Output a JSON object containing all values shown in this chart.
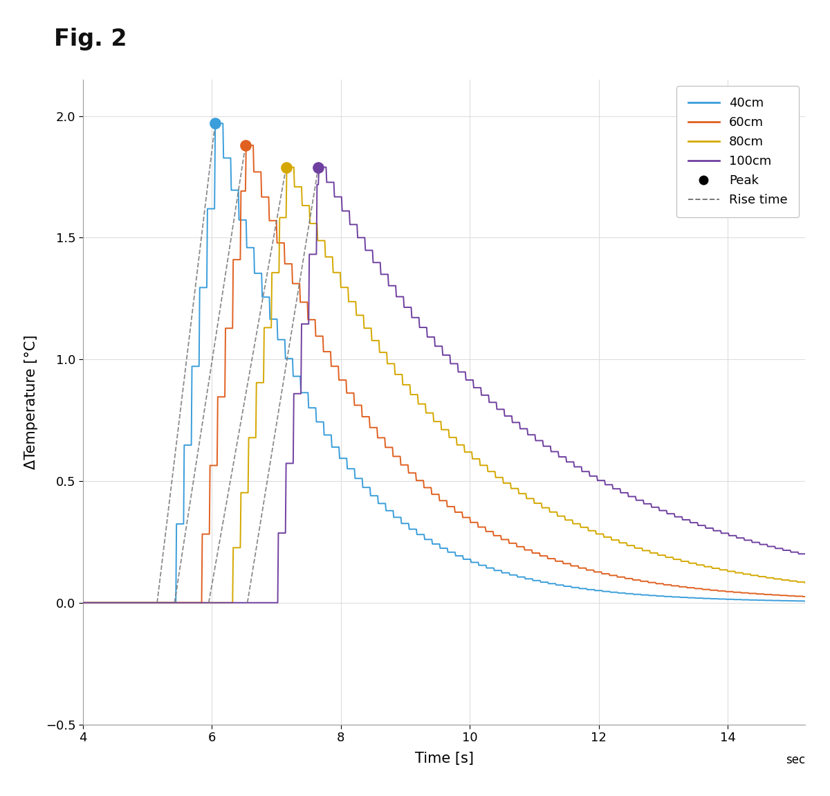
{
  "title": "Fig. 2",
  "xlabel": "Time [s]",
  "ylabel": "ΔTemperature [°C]",
  "xlim": [
    4,
    15.2
  ],
  "ylim": [
    -0.5,
    2.15
  ],
  "xticks": [
    4,
    6,
    8,
    10,
    12,
    14
  ],
  "yticks": [
    -0.5,
    0,
    0.5,
    1.0,
    1.5,
    2.0
  ],
  "colors": {
    "40cm": "#3A9EDB",
    "60cm": "#E06020",
    "80cm": "#D4A800",
    "100cm": "#7040A0"
  },
  "rise_time_color": "#777777",
  "background_color": "#FFFFFF",
  "grid_color": "#DDDDDD",
  "curves": {
    "40cm": {
      "t_start": 5.32,
      "t_peak": 6.05,
      "peak_val": 1.97,
      "decay_tau": 1.6,
      "n_rise_steps": 9,
      "step_interval": 0.12,
      "rise_line_start": 5.15
    },
    "60cm": {
      "t_start": 5.72,
      "t_peak": 6.52,
      "peak_val": 1.88,
      "decay_tau": 2.0,
      "n_rise_steps": 11,
      "step_interval": 0.12,
      "rise_line_start": 5.42
    },
    "80cm": {
      "t_start": 6.2,
      "t_peak": 7.15,
      "peak_val": 1.79,
      "decay_tau": 2.6,
      "n_rise_steps": 13,
      "step_interval": 0.12,
      "rise_line_start": 5.95
    },
    "100cm": {
      "t_start": 6.9,
      "t_peak": 7.65,
      "peak_val": 1.79,
      "decay_tau": 3.4,
      "n_rise_steps": 14,
      "step_interval": 0.12,
      "rise_line_start": 6.55
    }
  }
}
